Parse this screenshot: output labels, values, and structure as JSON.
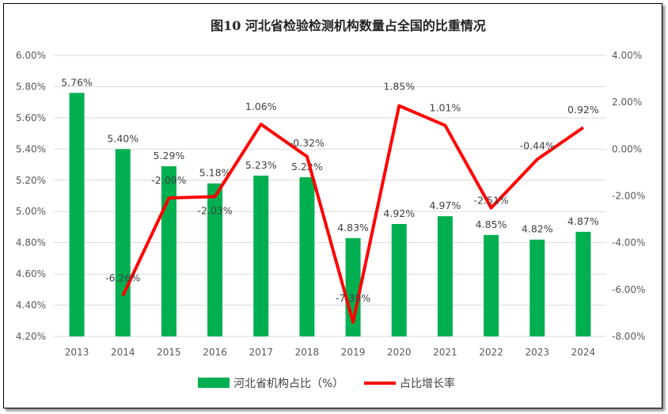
{
  "chart_data": {
    "type": "bar+line",
    "title": "图10  河北省检验检测机构数量占全国的比重情况",
    "categories": [
      "2013",
      "2014",
      "2015",
      "2016",
      "2017",
      "2018",
      "2019",
      "2020",
      "2021",
      "2022",
      "2023",
      "2024"
    ],
    "series": [
      {
        "name": "河北省机构占比（%）",
        "type": "bar",
        "axis": "left",
        "color": "#00B050",
        "values": [
          5.76,
          5.4,
          5.29,
          5.18,
          5.23,
          5.22,
          4.83,
          4.92,
          4.97,
          4.85,
          4.82,
          4.87
        ],
        "labels": [
          "5.76%",
          "5.40%",
          "5.29%",
          "5.18%",
          "5.23%",
          "5.22%",
          "4.83%",
          "4.92%",
          "4.97%",
          "4.85%",
          "4.82%",
          "4.87%"
        ]
      },
      {
        "name": "占比增长率",
        "type": "line",
        "axis": "right",
        "color": "#FF0000",
        "values": [
          null,
          -6.26,
          -2.09,
          -2.03,
          1.06,
          -0.32,
          -7.39,
          1.85,
          1.01,
          -2.51,
          -0.44,
          0.92
        ],
        "labels": [
          "",
          "-6.26%",
          "-2.09%",
          "-2.03%",
          "1.06%",
          "-0.32%",
          "-7.39%",
          "1.85%",
          "1.01%",
          "-2.51%",
          "-0.44%",
          "0.92%"
        ]
      }
    ],
    "y_left": {
      "range": [
        4.2,
        6.0
      ],
      "ticks": [
        "4.20%",
        "4.40%",
        "4.60%",
        "4.80%",
        "5.00%",
        "5.20%",
        "5.40%",
        "5.60%",
        "5.80%",
        "6.00%"
      ]
    },
    "y_right": {
      "range": [
        -8,
        4
      ],
      "ticks": [
        "-8.00%",
        "-6.00%",
        "-4.00%",
        "-2.00%",
        "0.00%",
        "2.00%",
        "4.00%"
      ]
    },
    "grid": true,
    "legend": "bottom"
  }
}
